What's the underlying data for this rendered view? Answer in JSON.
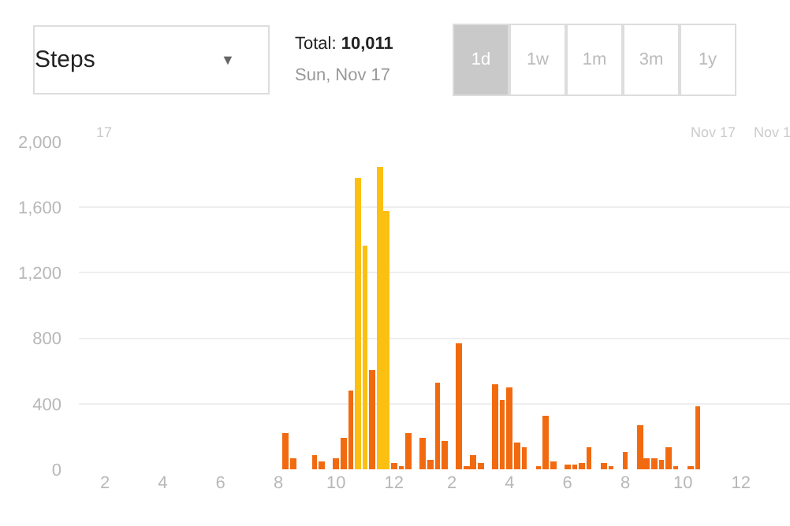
{
  "chart_data": {
    "type": "bar",
    "annotations": [
      "Steps",
      "▼",
      "Total: 10,011",
      "Sun, Nov 17",
      "1d",
      "1w",
      "1m",
      "3m",
      "1y",
      "17",
      "Nov 17",
      "Nov 1"
    ],
    "x": [
      "--11-17T08:15",
      "--11-17T08:30",
      "--11-17T09:15",
      "--11-17T09:30",
      "--11-17T10:00",
      "--11-17T10:15",
      "--11-17T10:30",
      "--11-17T10:45",
      "--11-17T11:00",
      "--11-17T11:15",
      "--11-17T11:30",
      "--11-17T11:45",
      "--11-17T12:00",
      "--11-17T12:15",
      "--11-17T12:30",
      "--11-17T13:00",
      "--11-17T13:15",
      "--11-17T13:30",
      "--11-17T13:45",
      "--11-17T14:15",
      "--11-17T14:30",
      "--11-17T14:45",
      "--11-17T15:00",
      "--11-17T15:30",
      "--11-17T15:45",
      "--11-17T16:00",
      "--11-17T16:15",
      "--11-17T16:30",
      "--11-17T17:00",
      "--11-17T17:15",
      "--11-17T17:30",
      "--11-17T18:00",
      "--11-17T18:15",
      "--11-17T18:30",
      "--11-17T18:45",
      "--11-17T19:15",
      "--11-17T19:30",
      "--11-17T20:00",
      "--11-17T20:30",
      "--11-17T20:45",
      "--11-17T21:00",
      "--11-17T21:15",
      "--11-17T21:30",
      "--11-17T21:45",
      "--11-17T22:15",
      "--11-17T22:30"
    ],
    "values": [
      220,
      70,
      90,
      50,
      70,
      190,
      480,
      1780,
      1370,
      610,
      1850,
      1580,
      40,
      20,
      220,
      190,
      60,
      530,
      170,
      770,
      10,
      90,
      40,
      520,
      420,
      500,
      160,
      130,
      10,
      330,
      50,
      30,
      30,
      40,
      130,
      40,
      10,
      110,
      270,
      70,
      70,
      60,
      130,
      10,
      10,
      380
    ],
    "colors": [
      "#f26a10",
      "#f26a10",
      "#f26a10",
      "#f26a10",
      "#f26a10",
      "#f26a10",
      "#f26a10",
      "#fcc012",
      "#fcc012",
      "#f26a10",
      "#fcc012",
      "#fcc012",
      "#f26a10",
      "#f26a10",
      "#f26a10",
      "#f26a10",
      "#f26a10",
      "#f26a10",
      "#f26a10",
      "#f26a10",
      "#f26a10",
      "#f26a10",
      "#f26a10",
      "#f26a10",
      "#f26a10",
      "#f26a10",
      "#f26a10",
      "#f26a10",
      "#f26a10",
      "#f26a10",
      "#f26a10",
      "#f26a10",
      "#f26a10",
      "#f26a10",
      "#f26a10",
      "#f26a10",
      "#f26a10",
      "#f26a10",
      "#f26a10",
      "#f26a10",
      "#f26a10",
      "#f26a10",
      "#f26a10",
      "#f26a10",
      "#f26a10",
      "#f26a10"
    ],
    "xlim": [
      "--11-17T01:06",
      "--11-18T01:42"
    ],
    "xticks": [
      {
        "value": "--11-17T02:00",
        "label": "2"
      },
      {
        "value": "--11-17T04:00",
        "label": "4"
      },
      {
        "value": "--11-17T06:00",
        "label": "6"
      },
      {
        "value": "--11-17T08:00",
        "label": "8"
      },
      {
        "value": "--11-17T10:00",
        "label": "10"
      },
      {
        "value": "--11-17T12:00",
        "label": "12"
      },
      {
        "value": "--11-17T14:00",
        "label": "2"
      },
      {
        "value": "--11-17T16:00",
        "label": "4"
      },
      {
        "value": "--11-17T18:00",
        "label": "6"
      },
      {
        "value": "--11-17T20:00",
        "label": "8"
      },
      {
        "value": "--11-17T22:00",
        "label": "10"
      },
      {
        "value": "--11-18T00:00",
        "label": "12"
      }
    ],
    "ylim": [
      0,
      2000
    ],
    "yticks": [
      0,
      400,
      800,
      {
        "value": 1200,
        "label": "1,200"
      },
      {
        "value": 1600,
        "label": "1,600"
      },
      {
        "value": 2000,
        "label": "2,000"
      }
    ],
    "grid": "y"
  }
}
